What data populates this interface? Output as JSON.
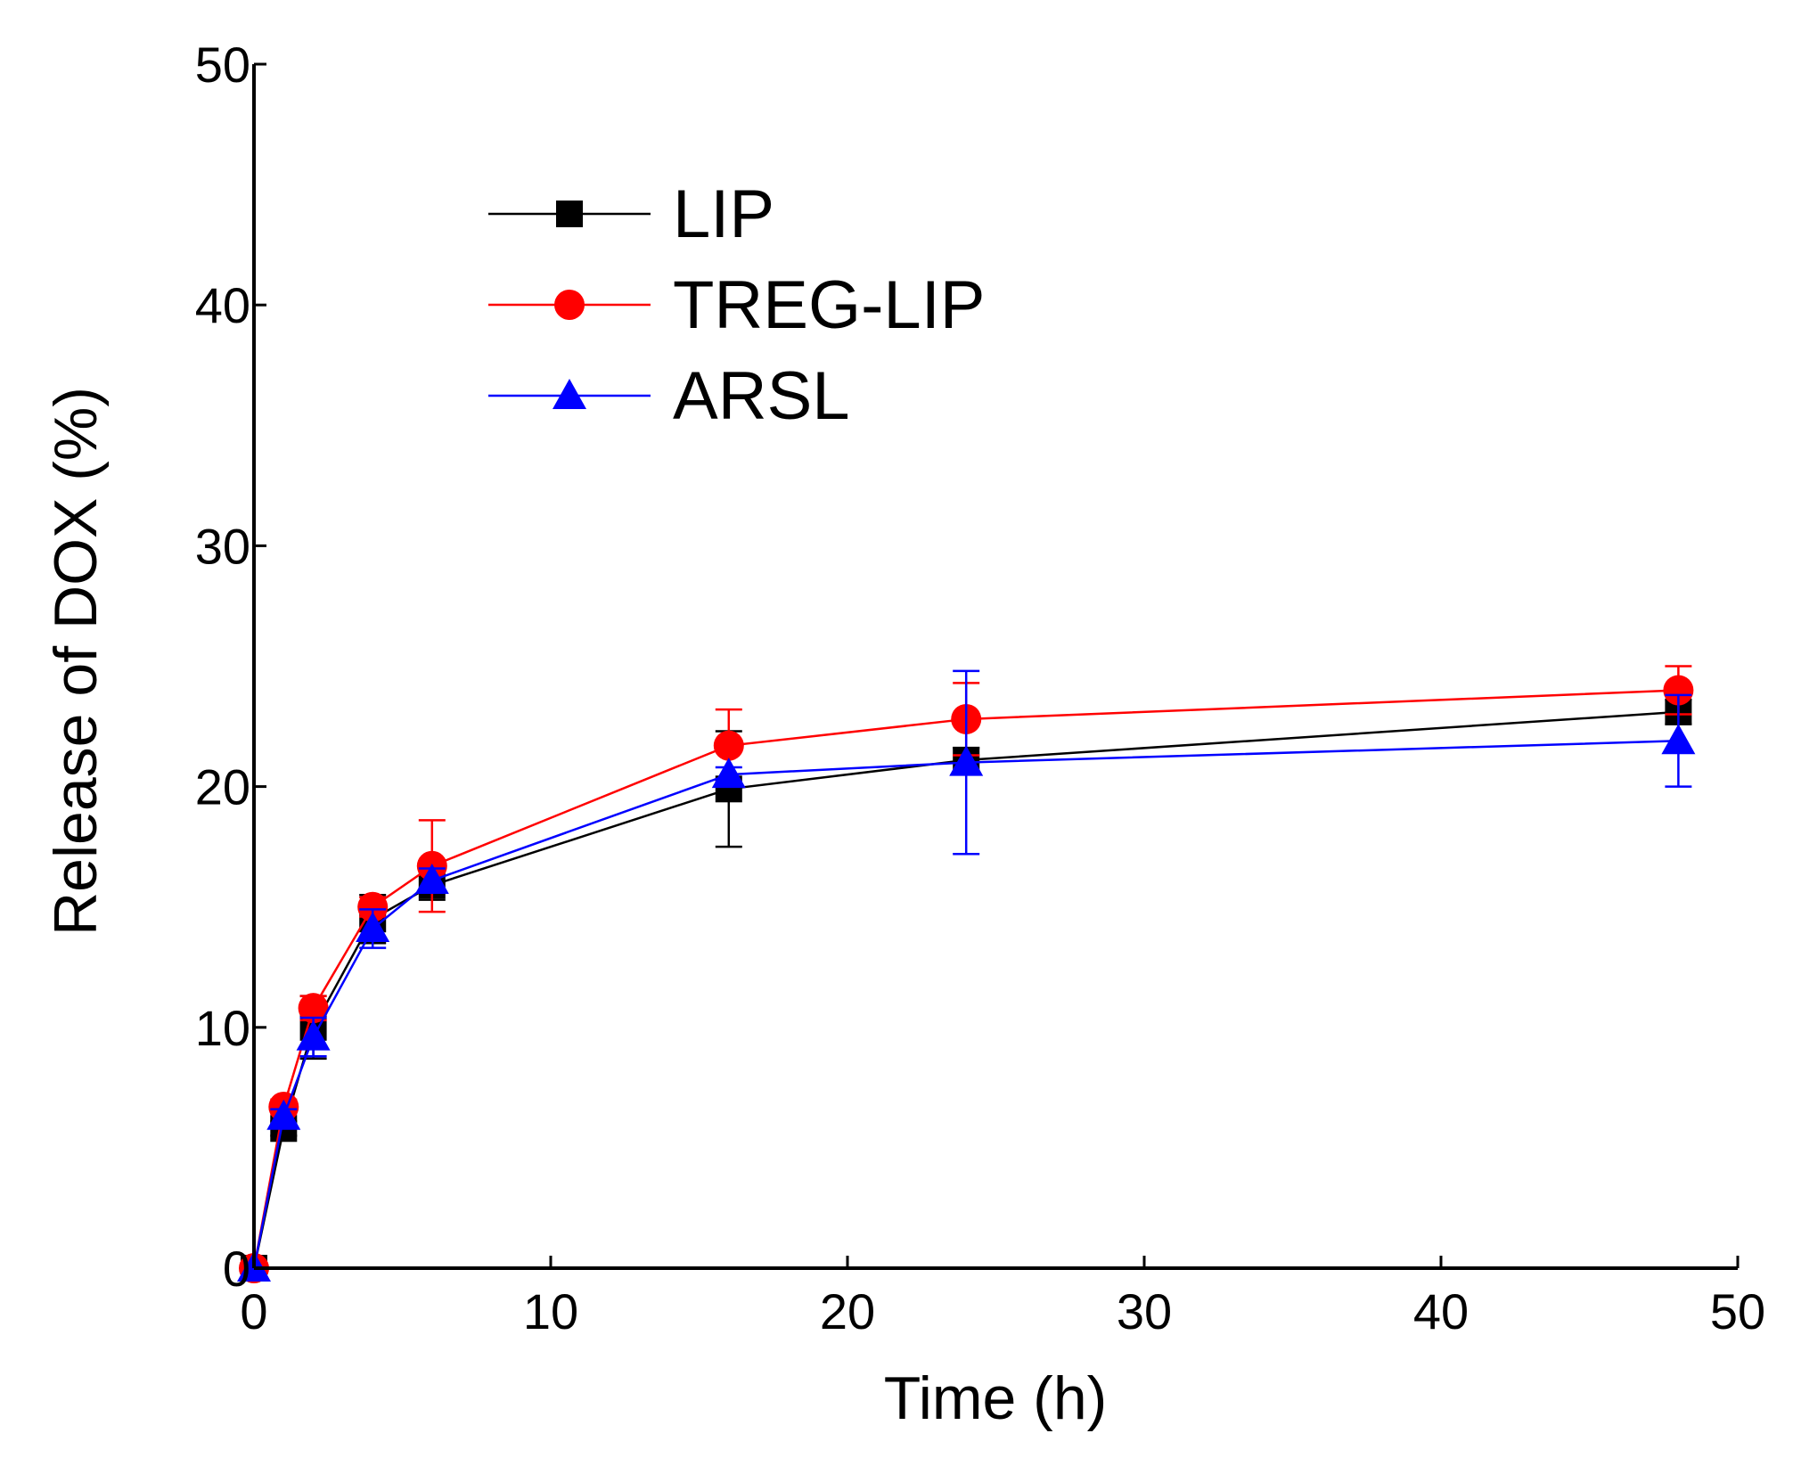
{
  "chart_data": {
    "type": "line",
    "title": "",
    "xlabel": "Time (h)",
    "ylabel": "Release of DOX (%)",
    "xlim": [
      0,
      50
    ],
    "ylim": [
      0,
      50
    ],
    "xticks": [
      "0",
      "10",
      "20",
      "30",
      "40",
      "50"
    ],
    "yticks": [
      "0",
      "10",
      "20",
      "30",
      "40",
      "50"
    ],
    "grid": false,
    "legend_position": "top-left",
    "x": [
      0,
      1,
      2,
      4,
      6,
      16,
      24,
      48
    ],
    "series": [
      {
        "name": "LIP",
        "color": "#000000",
        "marker": "square",
        "values": [
          0,
          5.8,
          10.0,
          14.5,
          15.9,
          19.9,
          21.1,
          23.1
        ],
        "errors": [
          0,
          0.3,
          1.3,
          1.0,
          0.6,
          2.4,
          0.5,
          0.5
        ]
      },
      {
        "name": "TREG-LIP",
        "color": "#ff0000",
        "marker": "circle",
        "values": [
          0,
          6.7,
          10.8,
          15.0,
          16.7,
          21.7,
          22.8,
          24.0
        ],
        "errors": [
          0,
          0.3,
          0.5,
          0.4,
          1.9,
          1.5,
          1.5,
          1.0
        ]
      },
      {
        "name": "ARSL",
        "color": "#0000ff",
        "marker": "triangle",
        "values": [
          0,
          6.3,
          9.6,
          14.1,
          16.1,
          20.5,
          21.0,
          21.9
        ],
        "errors": [
          0,
          0.3,
          0.8,
          0.8,
          0.5,
          0.3,
          3.8,
          1.9
        ]
      }
    ]
  }
}
